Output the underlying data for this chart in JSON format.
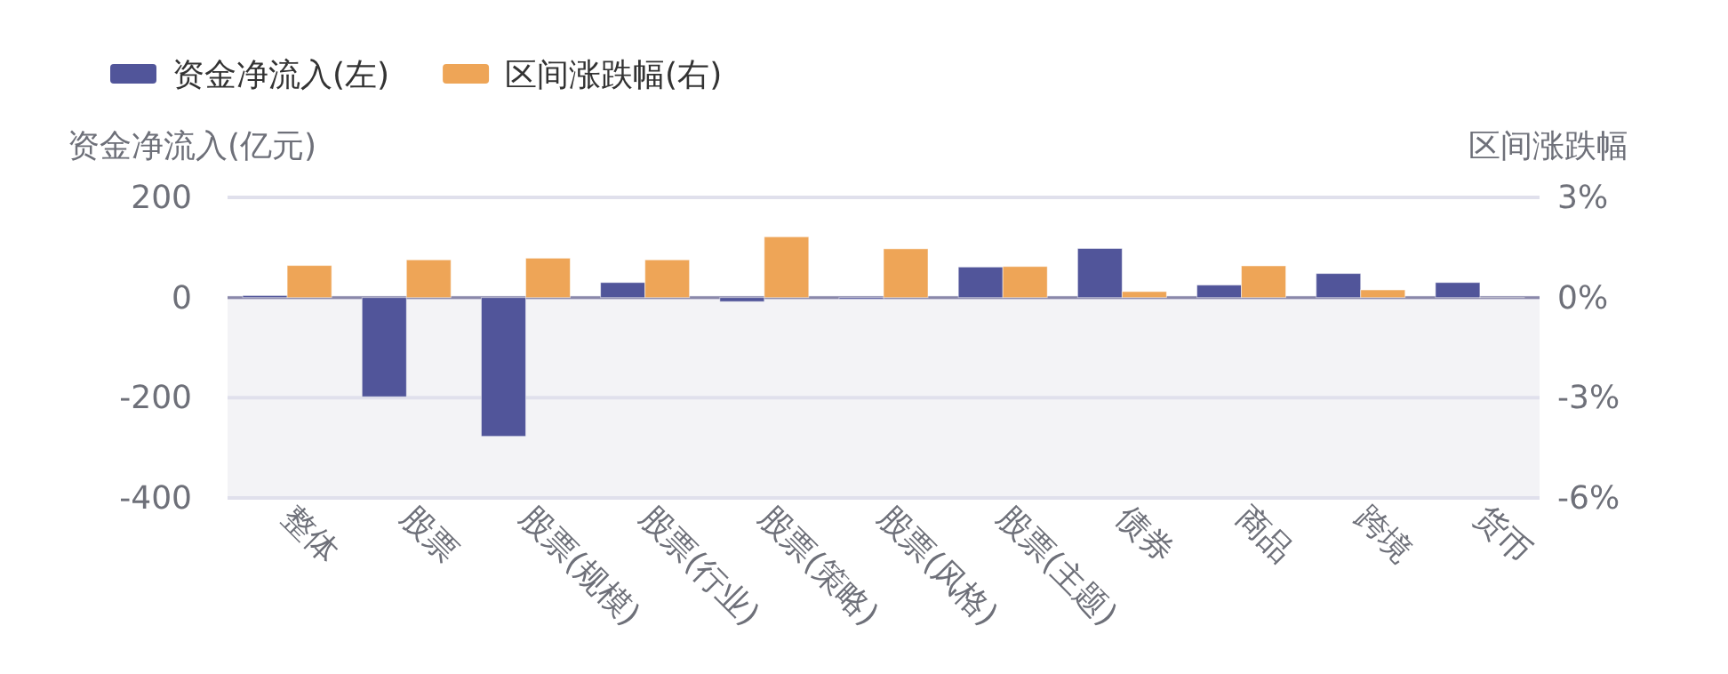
{
  "chart_data": {
    "type": "bar",
    "categories": [
      "整体",
      "股票",
      "股票(规模)",
      "股票(行业)",
      "股票(策略)",
      "股票(风格)",
      "股票(主题)",
      "债券",
      "商品",
      "跨境",
      "货币"
    ],
    "series": [
      {
        "name": "资金净流入(左)",
        "color": "#51559a",
        "values": [
          4,
          -198,
          -277,
          30,
          -8,
          -3,
          61,
          98,
          25,
          48,
          30
        ]
      },
      {
        "name": "区间涨跌幅(右)",
        "color": "#eea557",
        "axis": "y2",
        "values": [
          0.96,
          1.13,
          1.18,
          1.13,
          1.82,
          1.46,
          0.93,
          0.18,
          0.95,
          0.23,
          0
        ]
      }
    ],
    "ylabel": "资金净流入(亿元)",
    "y2label": "区间涨跌幅",
    "ylim": [
      -400,
      200
    ],
    "yticks": [
      200,
      0,
      -200,
      -400
    ],
    "y2lim": [
      -6,
      3
    ],
    "y2ticks": [
      {
        "value": 3,
        "label": "3%"
      },
      {
        "value": 0,
        "label": "0%"
      },
      {
        "value": -3,
        "label": "-3%"
      },
      {
        "value": -6,
        "label": "-6%"
      }
    ],
    "bands": [
      {
        "axis": "y",
        "from": -400,
        "to": 0,
        "color": "#f3f3f6"
      }
    ],
    "grid": "y",
    "legend": "top left"
  }
}
